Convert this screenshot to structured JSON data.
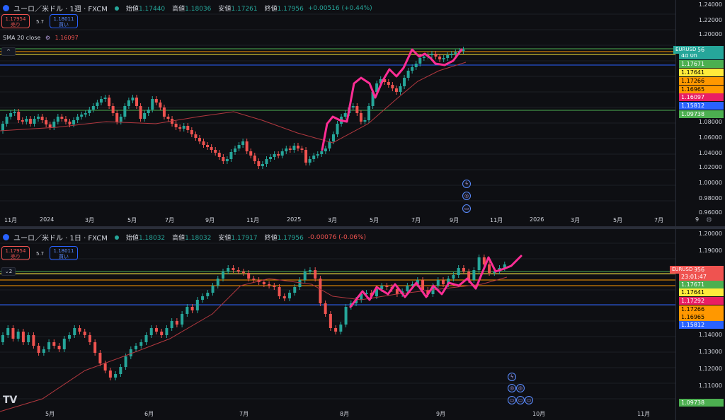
{
  "top": {
    "symbol": "ユーロ／米ドル · 1週 · FXCM",
    "open_label": "始値",
    "open": "1.17440",
    "high_label": "高値",
    "high": "1.18036",
    "low_label": "安値",
    "low": "1.17261",
    "close_label": "終値",
    "close": "1.17956",
    "change": "+0.00516 (+0.44%)",
    "sell_price": "1.17954",
    "sell_label": "売り",
    "spread": "5.7",
    "buy_price": "1.18011",
    "buy_label": "買い",
    "sma_label": "SMA 20 close",
    "sma_value": "1.16097",
    "collapse_glyph": "^",
    "y_ticks": [
      "1.24000",
      "1.22000",
      "1.20000",
      "1.08000",
      "1.06000",
      "1.04000",
      "1.02000",
      "1.00000",
      "0.98000",
      "0.96000"
    ],
    "price_tags": [
      {
        "text": "1.17956",
        "color": "#26a69a",
        "fg": "#ffffff"
      },
      {
        "text": "4d 0h",
        "color": "#26a69a",
        "fg": "#ffffff"
      },
      {
        "text": "1.17671",
        "color": "#4caf50",
        "fg": "#ffffff"
      },
      {
        "text": "1.17641",
        "color": "#ffeb3b",
        "fg": "#000000"
      },
      {
        "text": "1.17266",
        "color": "#ff9800",
        "fg": "#000000"
      },
      {
        "text": "1.16965",
        "color": "#ff9800",
        "fg": "#000000"
      },
      {
        "text": "1.16097",
        "color": "#e91e63",
        "fg": "#ffffff"
      },
      {
        "text": "1.15812",
        "color": "#2962ff",
        "fg": "#ffffff"
      },
      {
        "text": "1.09738",
        "color": "#4caf50",
        "fg": "#ffffff"
      }
    ],
    "symbol_tag": "EURUSD",
    "x_labels": [
      "11月",
      "2024",
      "3月",
      "5月",
      "7月",
      "9月",
      "11月",
      "2025",
      "3月",
      "5月",
      "7月",
      "9月",
      "11月",
      "2026",
      "3月",
      "5月",
      "7月",
      "9"
    ]
  },
  "bottom": {
    "symbol": "ユーロ／米ドル · 1日 · FXCM",
    "open_label": "始値",
    "open": "1.18032",
    "high_label": "高値",
    "high": "1.18032",
    "low_label": "安値",
    "low": "1.17917",
    "close_label": "終値",
    "close": "1.17956",
    "change": "-0.00076 (-0.06%)",
    "sell_price": "1.17954",
    "sell_label": "売り",
    "spread": "5.7",
    "buy_price": "1.18011",
    "buy_label": "買い",
    "collapse_count": "2",
    "y_ticks": [
      "1.20000",
      "1.19000",
      "1.14000",
      "1.13000",
      "1.12000",
      "1.11000"
    ],
    "price_tags": [
      {
        "text": "1.17956",
        "color": "#ef5350",
        "fg": "#ffffff"
      },
      {
        "text": "23:01:47",
        "color": "#ef5350",
        "fg": "#ffffff"
      },
      {
        "text": "1.17671",
        "color": "#4caf50",
        "fg": "#ffffff"
      },
      {
        "text": "1.17641",
        "color": "#ffeb3b",
        "fg": "#000000"
      },
      {
        "text": "1.17292",
        "color": "#e91e63",
        "fg": "#ffffff"
      },
      {
        "text": "1.17266",
        "color": "#ff9800",
        "fg": "#000000"
      },
      {
        "text": "1.16965",
        "color": "#ff9800",
        "fg": "#000000"
      },
      {
        "text": "1.15812",
        "color": "#2962ff",
        "fg": "#ffffff"
      }
    ],
    "bottom_tag": {
      "text": "1.09738",
      "color": "#4caf50",
      "fg": "#ffffff"
    },
    "symbol_tag": "EURUSD",
    "x_labels": [
      "5月",
      "6月",
      "7月",
      "8月",
      "9月",
      "10月",
      "11月"
    ]
  },
  "colors": {
    "up": "#26a69a",
    "down": "#ef5350",
    "sma": "#b2383f",
    "wave": "#ff2d95",
    "grid": "#1c1f26"
  }
}
